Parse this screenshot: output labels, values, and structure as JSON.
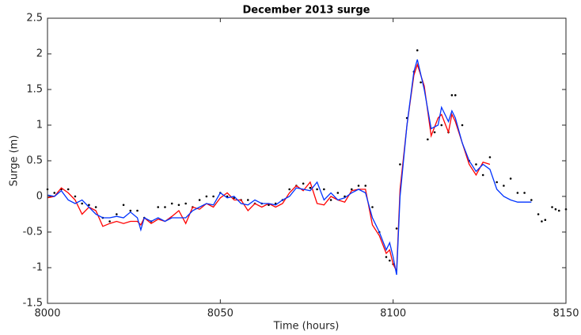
{
  "chart_data": {
    "type": "line",
    "title": "December 2013 surge",
    "x_label": "Time (hours)",
    "y_label": "Surge (m)",
    "xlim": [
      8000,
      8150
    ],
    "xticks": [
      8000,
      8050,
      8100,
      8150
    ],
    "ylim": [
      -1.5,
      2.5
    ],
    "yticks": [
      -1.5,
      -1,
      -0.5,
      0,
      0.5,
      1,
      1.5,
      2,
      2.5
    ],
    "box": true,
    "series": [
      {
        "color": "#000000",
        "style": "dots",
        "x": [
          8000,
          8002,
          8004,
          8006,
          8008,
          8010,
          8012,
          8014,
          8016,
          8018,
          8020,
          8022,
          8024,
          8026,
          8028,
          8030,
          8032,
          8034,
          8036,
          8038,
          8040,
          8042,
          8044,
          8046,
          8048,
          8050,
          8052,
          8054,
          8056,
          8058,
          8060,
          8062,
          8064,
          8066,
          8068,
          8070,
          8072,
          8074,
          8076,
          8078,
          8080,
          8082,
          8084,
          8086,
          8088,
          8090,
          8092,
          8094,
          8096,
          8098,
          8099,
          8100,
          8101,
          8102,
          8104,
          8106,
          8107,
          8108,
          8110,
          8112,
          8114,
          8116,
          8117,
          8118,
          8120,
          8122,
          8124,
          8126,
          8128,
          8130,
          8132,
          8134,
          8136,
          8138,
          8140,
          8142,
          8143,
          8144,
          8146,
          8147,
          8148,
          8150
        ],
        "values": [
          0.1,
          0.05,
          0.1,
          0.1,
          0.0,
          -0.1,
          -0.12,
          -0.15,
          -0.3,
          -0.35,
          -0.25,
          -0.12,
          -0.2,
          -0.2,
          -0.3,
          -0.35,
          -0.15,
          -0.15,
          -0.1,
          -0.12,
          -0.1,
          -0.15,
          -0.05,
          0.0,
          0.0,
          0.05,
          0.0,
          -0.02,
          -0.05,
          -0.05,
          -0.1,
          -0.1,
          -0.12,
          -0.1,
          -0.05,
          0.1,
          0.15,
          0.18,
          0.12,
          0.1,
          0.1,
          -0.05,
          0.05,
          0.0,
          0.1,
          0.15,
          0.15,
          -0.15,
          -0.5,
          -0.85,
          -0.9,
          -0.95,
          -0.45,
          0.45,
          1.1,
          1.75,
          2.05,
          1.6,
          0.8,
          0.9,
          1.0,
          0.9,
          1.42,
          1.42,
          1.0,
          0.5,
          0.45,
          0.3,
          0.55,
          0.2,
          0.15,
          0.25,
          0.05,
          0.05,
          -0.05,
          -0.25,
          -0.35,
          -0.33,
          -0.15,
          -0.18,
          -0.2,
          -0.18
        ]
      },
      {
        "color": "#ff0000",
        "style": "line",
        "x": [
          8000,
          8002,
          8004,
          8006,
          8008,
          8010,
          8012,
          8014,
          8016,
          8018,
          8020,
          8022,
          8024,
          8026,
          8027,
          8028,
          8030,
          8032,
          8034,
          8036,
          8038,
          8040,
          8042,
          8044,
          8046,
          8048,
          8050,
          8052,
          8054,
          8056,
          8058,
          8060,
          8062,
          8064,
          8066,
          8068,
          8070,
          8072,
          8074,
          8076,
          8078,
          8080,
          8082,
          8084,
          8086,
          8088,
          8090,
          8092,
          8094,
          8096,
          8098,
          8099,
          8100,
          8101,
          8102,
          8104,
          8106,
          8107,
          8109,
          8111,
          8113,
          8114,
          8116,
          8117,
          8118,
          8120,
          8122,
          8124,
          8126,
          8128
        ],
        "values": [
          -0.02,
          0.0,
          0.12,
          0.05,
          -0.05,
          -0.25,
          -0.15,
          -0.2,
          -0.42,
          -0.38,
          -0.35,
          -0.38,
          -0.35,
          -0.35,
          -0.4,
          -0.3,
          -0.38,
          -0.32,
          -0.35,
          -0.28,
          -0.2,
          -0.38,
          -0.15,
          -0.18,
          -0.1,
          -0.15,
          -0.02,
          0.05,
          -0.05,
          -0.05,
          -0.2,
          -0.1,
          -0.15,
          -0.1,
          -0.15,
          -0.1,
          0.05,
          0.15,
          0.08,
          0.2,
          -0.1,
          -0.12,
          0.0,
          -0.05,
          -0.08,
          0.08,
          0.1,
          0.1,
          -0.4,
          -0.55,
          -0.8,
          -0.75,
          -0.95,
          -1.05,
          0.1,
          1.0,
          1.7,
          1.85,
          1.55,
          0.85,
          1.1,
          1.15,
          0.9,
          1.15,
          1.05,
          0.75,
          0.45,
          0.3,
          0.48,
          0.45
        ]
      },
      {
        "color": "#0033ff",
        "style": "line",
        "x": [
          8000,
          8002,
          8004,
          8006,
          8008,
          8010,
          8012,
          8014,
          8016,
          8018,
          8020,
          8022,
          8024,
          8026,
          8027,
          8028,
          8030,
          8032,
          8034,
          8036,
          8038,
          8040,
          8042,
          8044,
          8046,
          8048,
          8050,
          8052,
          8054,
          8056,
          8058,
          8060,
          8062,
          8064,
          8066,
          8068,
          8070,
          8072,
          8074,
          8076,
          8078,
          8080,
          8082,
          8084,
          8086,
          8088,
          8090,
          8092,
          8094,
          8096,
          8098,
          8099,
          8100,
          8101,
          8102,
          8104,
          8106,
          8107,
          8109,
          8111,
          8113,
          8114,
          8116,
          8117,
          8118,
          8120,
          8122,
          8124,
          8126,
          8128,
          8130,
          8132,
          8134,
          8136,
          8138,
          8140
        ],
        "values": [
          0.02,
          0.0,
          0.08,
          -0.05,
          -0.1,
          -0.05,
          -0.15,
          -0.25,
          -0.3,
          -0.3,
          -0.28,
          -0.3,
          -0.22,
          -0.3,
          -0.47,
          -0.3,
          -0.35,
          -0.3,
          -0.35,
          -0.3,
          -0.3,
          -0.3,
          -0.2,
          -0.15,
          -0.1,
          -0.12,
          0.05,
          -0.02,
          0.0,
          -0.1,
          -0.12,
          -0.05,
          -0.1,
          -0.1,
          -0.12,
          -0.05,
          0.0,
          0.12,
          0.1,
          0.08,
          0.2,
          -0.05,
          0.05,
          -0.05,
          -0.02,
          0.05,
          0.1,
          0.05,
          -0.3,
          -0.5,
          -0.75,
          -0.65,
          -0.85,
          -1.1,
          0.0,
          1.0,
          1.75,
          1.92,
          1.5,
          0.95,
          1.0,
          1.25,
          1.05,
          1.2,
          1.1,
          0.75,
          0.5,
          0.35,
          0.45,
          0.38,
          0.1,
          0.0,
          -0.05,
          -0.08,
          -0.08,
          -0.08
        ]
      }
    ]
  }
}
